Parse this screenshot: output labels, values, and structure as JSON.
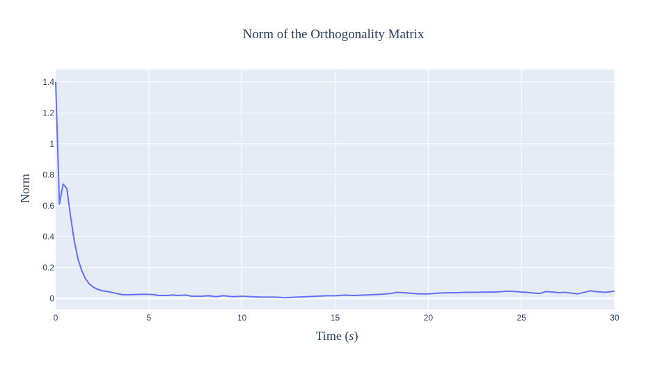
{
  "chart_data": {
    "type": "line",
    "title": "Norm of the Orthogonality Matrix",
    "xlabel_text": "Time (",
    "xlabel_var": "s",
    "xlabel_close": ")",
    "ylabel": "Norm",
    "xlim": [
      0,
      30
    ],
    "ylim": [
      -0.07,
      1.48
    ],
    "x_ticks": [
      0,
      5,
      10,
      15,
      20,
      25,
      30
    ],
    "y_ticks": [
      0,
      0.2,
      0.4,
      0.6,
      0.8,
      1,
      1.2,
      1.4
    ],
    "x_tick_labels": [
      "0",
      "5",
      "10",
      "15",
      "20",
      "25",
      "30"
    ],
    "y_tick_labels": [
      "0",
      "0.2",
      "0.4",
      "0.6",
      "0.8",
      "1",
      "1.2",
      "1.4"
    ],
    "grid": true,
    "colors": {
      "plot_bg": "#e5ecf6",
      "grid": "#ffffff",
      "line": "#636efa",
      "text": "#2a3f5f"
    },
    "series": [
      {
        "x": [
          0,
          0.2,
          0.4,
          0.6,
          0.8,
          1.0,
          1.2,
          1.4,
          1.6,
          1.8,
          2.0,
          2.2,
          2.5,
          2.8,
          3.0,
          3.3,
          3.6,
          4.0,
          4.5,
          5.0,
          5.3,
          5.5,
          6.0,
          6.3,
          6.5,
          7.0,
          7.3,
          7.8,
          8.2,
          8.6,
          9.0,
          9.5,
          10.0,
          10.5,
          11.0,
          11.5,
          12.0,
          12.3,
          12.7,
          13.0,
          13.5,
          14.0,
          14.5,
          15.0,
          15.5,
          16.0,
          16.5,
          17.0,
          17.5,
          18.0,
          18.3,
          18.7,
          19.0,
          19.5,
          20.0,
          20.5,
          21.0,
          21.5,
          22.0,
          22.5,
          23.0,
          23.5,
          24.0,
          24.3,
          24.7,
          25.0,
          25.3,
          25.7,
          26.0,
          26.3,
          26.7,
          27.0,
          27.3,
          27.7,
          28.0,
          28.3,
          28.7,
          29.0,
          29.5,
          30.0
        ],
        "values": [
          1.4,
          0.61,
          0.74,
          0.71,
          0.53,
          0.37,
          0.255,
          0.18,
          0.128,
          0.095,
          0.075,
          0.062,
          0.05,
          0.045,
          0.04,
          0.032,
          0.025,
          0.025,
          0.027,
          0.027,
          0.025,
          0.02,
          0.02,
          0.023,
          0.02,
          0.022,
          0.015,
          0.015,
          0.018,
          0.012,
          0.018,
          0.012,
          0.015,
          0.012,
          0.01,
          0.01,
          0.008,
          0.005,
          0.008,
          0.01,
          0.012,
          0.015,
          0.018,
          0.018,
          0.022,
          0.02,
          0.022,
          0.025,
          0.028,
          0.033,
          0.04,
          0.038,
          0.035,
          0.03,
          0.03,
          0.035,
          0.037,
          0.038,
          0.04,
          0.04,
          0.042,
          0.042,
          0.045,
          0.048,
          0.045,
          0.042,
          0.04,
          0.035,
          0.033,
          0.045,
          0.042,
          0.038,
          0.04,
          0.035,
          0.03,
          0.038,
          0.05,
          0.045,
          0.04,
          0.048
        ]
      }
    ]
  }
}
